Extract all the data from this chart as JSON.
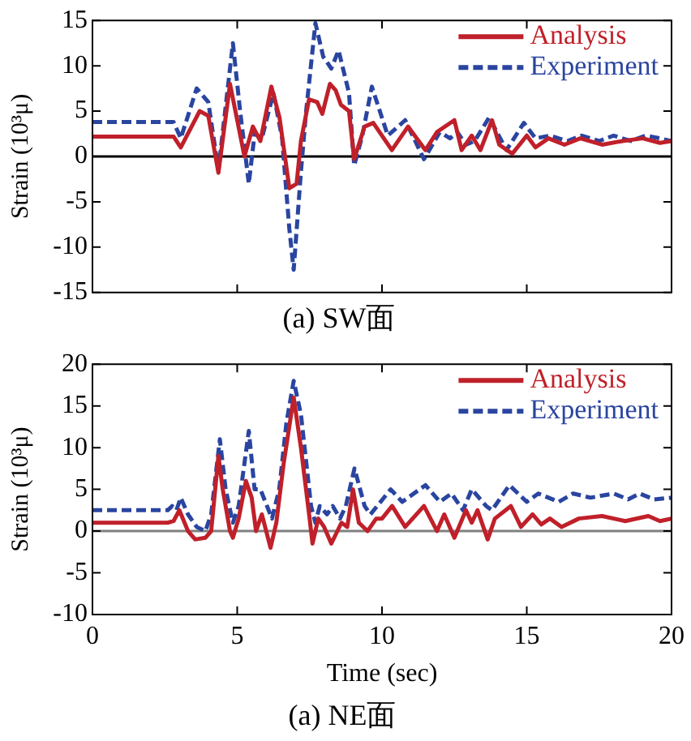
{
  "chart_data": [
    {
      "type": "line",
      "title": "(a) SW面",
      "ylabel": "Strain (10³μ)",
      "xlim": [
        0,
        20
      ],
      "xticks": [
        0,
        5,
        10,
        15,
        20
      ],
      "ylim": [
        -15,
        15
      ],
      "yticks": [
        -15,
        -10,
        -5,
        0,
        5,
        10,
        15
      ],
      "tick_labels": "y",
      "legend": "top right",
      "ref_lines": [
        {
          "axis": "y",
          "value": 0,
          "color": "#000000"
        }
      ],
      "series": [
        {
          "name": "Analysis",
          "color": "#c0202a",
          "line_style": "solid",
          "x": [
            0,
            2.8,
            3.05,
            3.7,
            4.0,
            4.35,
            4.75,
            5.25,
            5.54,
            5.8,
            6.18,
            6.46,
            6.8,
            7.05,
            7.2,
            7.48,
            7.76,
            7.94,
            8.2,
            8.4,
            8.58,
            8.86,
            9.04,
            9.4,
            9.7,
            10.34,
            10.9,
            11.5,
            11.9,
            12.5,
            12.75,
            13.1,
            13.4,
            13.8,
            14.05,
            14.5,
            15.0,
            15.3,
            15.75,
            16.3,
            16.85,
            17.6,
            18.3,
            19.0,
            19.6,
            20
          ],
          "values": [
            2.2,
            2.2,
            1,
            5,
            4.5,
            -1.8,
            8,
            0,
            3.3,
            1.7,
            7.7,
            4.3,
            -3.5,
            -3,
            1.7,
            6.3,
            6,
            4.7,
            8,
            7.3,
            5.7,
            5,
            -0.3,
            3.3,
            3.7,
            0.7,
            3.3,
            0.7,
            2.7,
            4,
            0.7,
            2.3,
            0.7,
            4,
            1.3,
            0.3,
            2.3,
            1,
            2,
            1.3,
            2,
            1.3,
            1.7,
            2,
            1.5,
            1.7
          ]
        },
        {
          "name": "Experiment",
          "color": "#2a45a0",
          "line_style": "dashed",
          "x": [
            0,
            2.8,
            3.05,
            3.6,
            4.0,
            4.35,
            4.85,
            5.1,
            5.4,
            5.6,
            5.85,
            6.25,
            6.55,
            6.8,
            6.95,
            7.2,
            7.38,
            7.7,
            7.97,
            8.25,
            8.5,
            8.86,
            9.04,
            9.32,
            9.65,
            10.2,
            10.8,
            11.45,
            12.0,
            12.35,
            12.6,
            12.9,
            13.2,
            13.7,
            14.3,
            14.9,
            15.3,
            15.8,
            16.4,
            16.9,
            17.5,
            18.0,
            18.6,
            19.1,
            19.6,
            20
          ],
          "values": [
            3.8,
            3.8,
            2,
            7.5,
            6,
            -1.5,
            12.5,
            5,
            -3,
            2.5,
            2,
            7,
            2,
            -8,
            -12.5,
            -1.7,
            5,
            14.7,
            11,
            9.7,
            11.7,
            7,
            -1,
            2.3,
            7.7,
            2.3,
            4,
            -0.3,
            2.7,
            2,
            2.7,
            1.3,
            1.7,
            4.3,
            0.7,
            3.7,
            2,
            2.3,
            1.7,
            2.3,
            1.7,
            2.3,
            1.7,
            2.3,
            2,
            1.7
          ]
        }
      ]
    },
    {
      "type": "line",
      "title": "(a) NE面",
      "xlabel": "Time (sec)",
      "ylabel": "Strain (10³μ)",
      "xlim": [
        0,
        20
      ],
      "xticks": [
        0,
        5,
        10,
        15,
        20
      ],
      "ylim": [
        -10,
        20
      ],
      "yticks": [
        -10,
        -5,
        0,
        5,
        10,
        15,
        20
      ],
      "legend": "top right",
      "ref_lines": [
        {
          "axis": "y",
          "value": 0,
          "color": "#808080"
        }
      ],
      "series": [
        {
          "name": "Analysis",
          "color": "#c0202a",
          "line_style": "solid",
          "x": [
            0,
            2.6,
            2.8,
            3.0,
            3.3,
            3.55,
            3.9,
            4.1,
            4.35,
            4.5,
            4.75,
            4.85,
            5.05,
            5.3,
            5.5,
            5.65,
            5.85,
            6.15,
            6.35,
            6.6,
            6.95,
            7.2,
            7.5,
            7.6,
            7.8,
            8.0,
            8.25,
            8.6,
            8.8,
            9.0,
            9.2,
            9.5,
            9.8,
            10.0,
            10.35,
            10.8,
            11.45,
            11.9,
            12.15,
            12.5,
            12.9,
            13.1,
            13.3,
            13.65,
            13.9,
            14.45,
            14.8,
            15.2,
            15.5,
            15.8,
            16.2,
            16.8,
            17.6,
            18.4,
            19.2,
            19.6,
            20
          ],
          "values": [
            1,
            1,
            1.2,
            2.5,
            0,
            -1,
            -0.8,
            0,
            9,
            5,
            0,
            -0.8,
            1.5,
            6,
            4,
            0,
            2,
            -2,
            1,
            8,
            16,
            10,
            1.5,
            -1.5,
            1.5,
            0.5,
            -1.5,
            1,
            0.5,
            5,
            1,
            0,
            1.5,
            1.5,
            3,
            0.5,
            3,
            0,
            2,
            -0.8,
            2.5,
            1,
            2.5,
            -1,
            1.5,
            3,
            0.5,
            2,
            0.8,
            1.5,
            0.5,
            1.5,
            1.8,
            1.2,
            1.8,
            1.2,
            1.5
          ]
        },
        {
          "name": "Experiment",
          "color": "#2a45a0",
          "line_style": "dashed",
          "x": [
            0,
            2.6,
            2.75,
            2.9,
            3.05,
            3.3,
            3.6,
            3.9,
            4.1,
            4.4,
            4.6,
            4.85,
            5.05,
            5.4,
            5.6,
            5.8,
            6.2,
            6.45,
            6.7,
            6.95,
            7.2,
            7.55,
            7.7,
            7.85,
            8.1,
            8.3,
            8.55,
            8.75,
            9.05,
            9.4,
            9.6,
            10.3,
            10.7,
            11.5,
            12.0,
            12.4,
            12.8,
            13.1,
            13.6,
            13.8,
            14.1,
            14.4,
            15.0,
            15.4,
            16.1,
            16.6,
            17.2,
            18.0,
            18.5,
            18.9,
            19.4,
            20
          ],
          "values": [
            2.5,
            2.5,
            3,
            2.5,
            4,
            2,
            0.5,
            0,
            2,
            11,
            5,
            1,
            3,
            12,
            5,
            5,
            1.5,
            5,
            13,
            18,
            14,
            3,
            1,
            3,
            2,
            3,
            1.5,
            3,
            7.5,
            3,
            2,
            5,
            3.5,
            5.5,
            3.5,
            4.5,
            2.5,
            5,
            3,
            2.5,
            4,
            5.5,
            3.5,
            4.5,
            3.5,
            4.5,
            4,
            4.5,
            3.8,
            4.5,
            3.8,
            4
          ]
        }
      ]
    }
  ]
}
